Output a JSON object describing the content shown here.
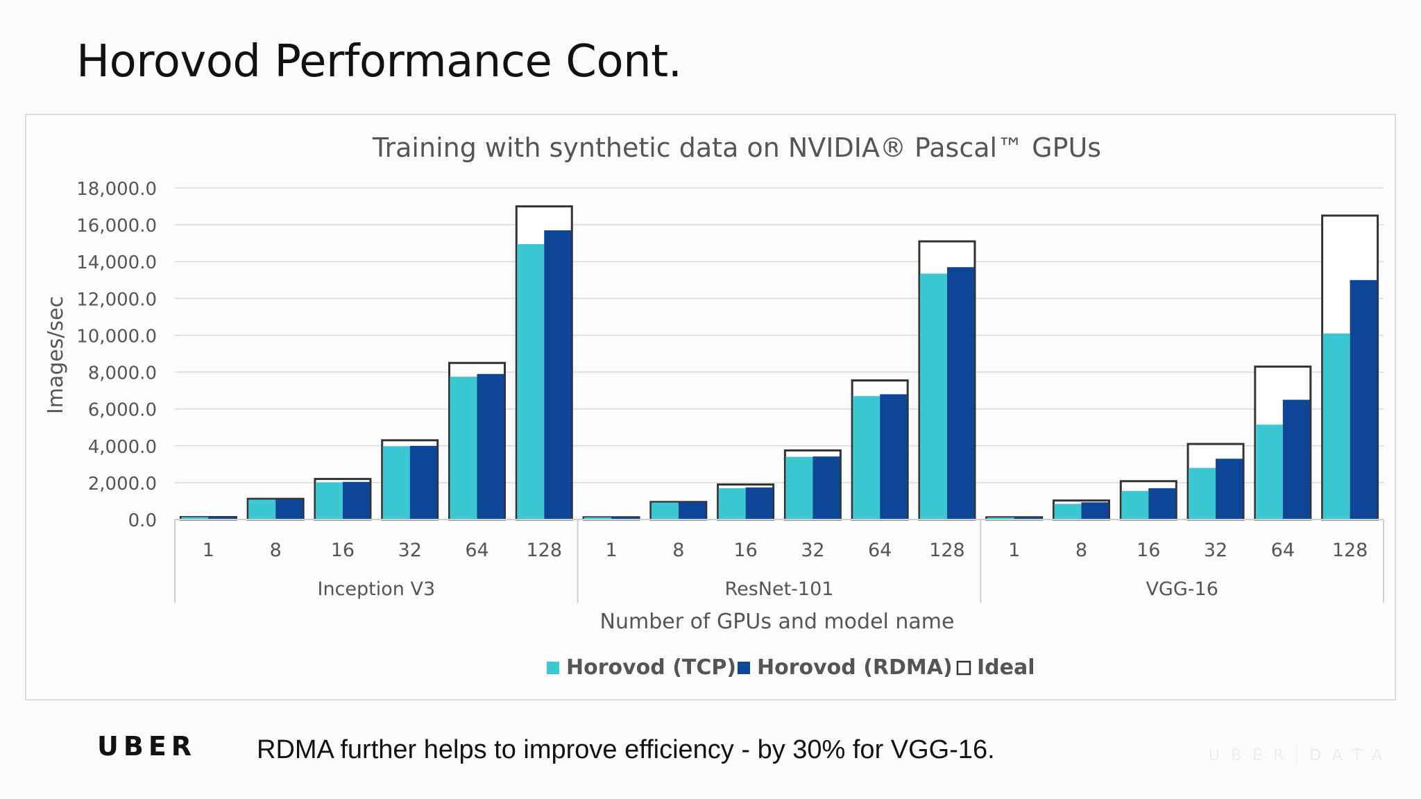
{
  "slide": {
    "title": "Horovod Performance Cont.",
    "footer_text": "RDMA further helps to improve efficiency - by 30% for VGG-16.",
    "logo_text": "UBER",
    "watermark_left": "UBER",
    "watermark_right": "DATA"
  },
  "colors": {
    "tcp": "#3cc8d2",
    "rdma": "#0d4696",
    "ideal_stroke": "#333333",
    "ideal_fill": "#ffffff",
    "grid": "#d9d9d9"
  },
  "chart_data": {
    "type": "bar",
    "title": "Training with synthetic data on NVIDIA® Pascal™ GPUs",
    "xlabel": "Number of GPUs and model name",
    "ylabel": "Images/sec",
    "ylim": [
      0,
      18000
    ],
    "yticks": [
      0,
      2000,
      4000,
      6000,
      8000,
      10000,
      12000,
      14000,
      16000,
      18000
    ],
    "ytick_labels": [
      "0.0",
      "2,000.0",
      "4,000.0",
      "6,000.0",
      "8,000.0",
      "10,000.0",
      "12,000.0",
      "14,000.0",
      "16,000.0",
      "18,000.0"
    ],
    "grid": true,
    "legend_position": "bottom",
    "groups": [
      {
        "name": "Inception V3",
        "categories": [
          "1",
          "8",
          "16",
          "32",
          "64",
          "128"
        ],
        "tcp": [
          130,
          1080,
          2020,
          3980,
          7750,
          14950
        ],
        "rdma": [
          130,
          1090,
          2040,
          4000,
          7900,
          15700
        ],
        "ideal": [
          130,
          1120,
          2200,
          4300,
          8500,
          17000
        ]
      },
      {
        "name": "ResNet-101",
        "categories": [
          "1",
          "8",
          "16",
          "32",
          "64",
          "128"
        ],
        "tcp": [
          120,
          920,
          1700,
          3400,
          6700,
          13350
        ],
        "rdma": [
          120,
          930,
          1740,
          3420,
          6800,
          13700
        ],
        "ideal": [
          120,
          950,
          1900,
          3750,
          7550,
          15100
        ]
      },
      {
        "name": "VGG-16",
        "categories": [
          "1",
          "8",
          "16",
          "32",
          "64",
          "128"
        ],
        "tcp": [
          110,
          850,
          1550,
          2800,
          5150,
          10100
        ],
        "rdma": [
          110,
          930,
          1700,
          3300,
          6500,
          13000
        ],
        "ideal": [
          120,
          1030,
          2080,
          4100,
          8300,
          16500
        ]
      }
    ],
    "series": [
      {
        "name": "Horovod (TCP)",
        "key": "tcp"
      },
      {
        "name": "Horovod (RDMA)",
        "key": "rdma"
      },
      {
        "name": "Ideal",
        "key": "ideal"
      }
    ]
  }
}
